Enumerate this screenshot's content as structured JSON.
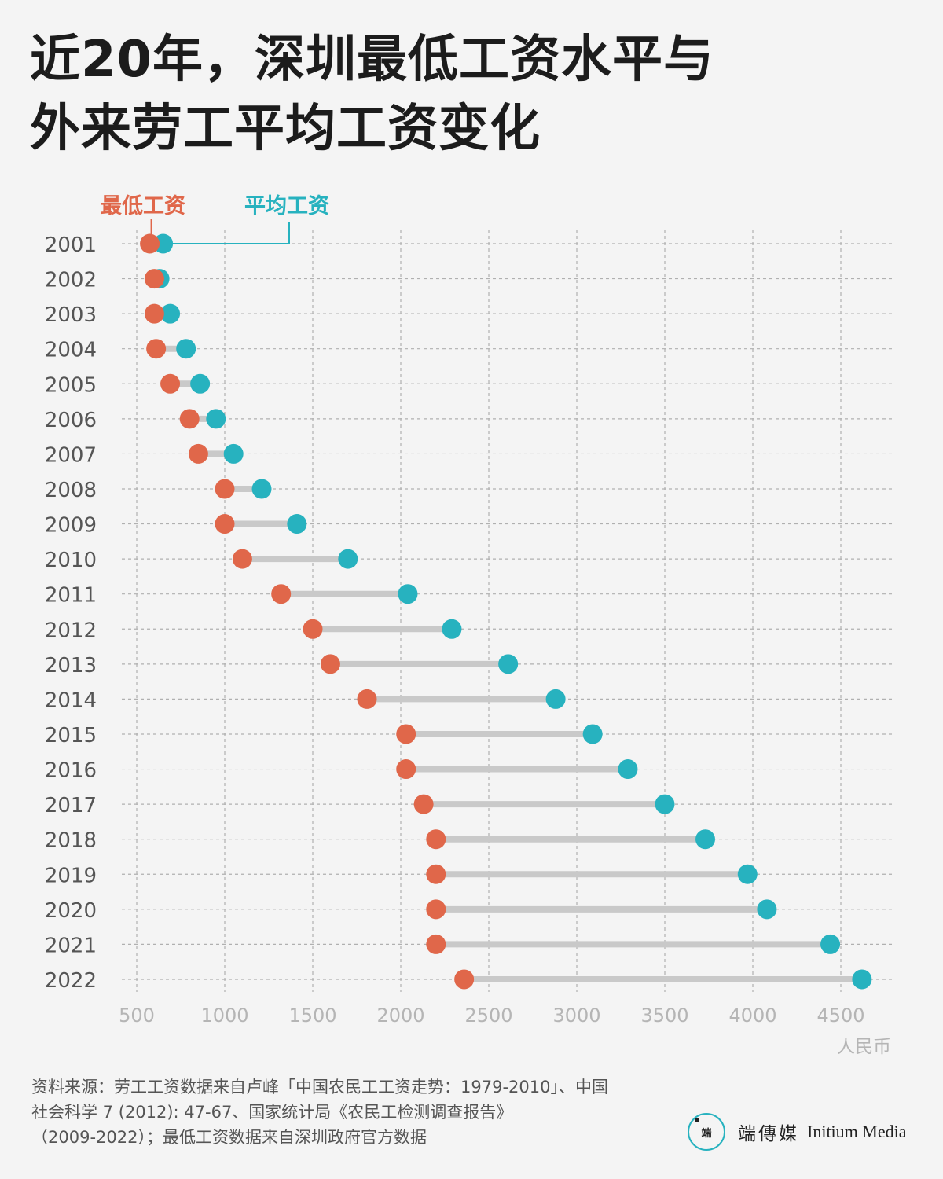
{
  "title": {
    "line1": "近20年，深圳最低工资水平与",
    "line2": "外来劳工平均工资变化"
  },
  "legend": {
    "min_label": "最低工资",
    "avg_label": "平均工资"
  },
  "colors": {
    "min": "#e0674a",
    "avg": "#27b2bf",
    "connector": "#c9c9c9",
    "grid": "#b0b0b0",
    "axis_text": "#b5b5b5",
    "year_text": "#555555"
  },
  "chart_data": {
    "type": "dumbbell",
    "unit_label": "人民币",
    "xlim": [
      430,
      4750
    ],
    "xticks": [
      500,
      1000,
      1500,
      2000,
      2500,
      3000,
      3500,
      4000,
      4500
    ],
    "grid": true,
    "legend_position": "top-left",
    "categories": [
      "2001",
      "2002",
      "2003",
      "2004",
      "2005",
      "2006",
      "2007",
      "2008",
      "2009",
      "2010",
      "2011",
      "2012",
      "2013",
      "2014",
      "2015",
      "2016",
      "2017",
      "2018",
      "2019",
      "2020",
      "2021",
      "2022"
    ],
    "series": [
      {
        "name": "最低工资",
        "values": [
          574,
          600,
          600,
          610,
          690,
          800,
          850,
          1000,
          1000,
          1100,
          1320,
          1500,
          1600,
          1808,
          2030,
          2030,
          2130,
          2200,
          2200,
          2200,
          2200,
          2360
        ]
      },
      {
        "name": "平均工资",
        "values": [
          650,
          630,
          690,
          780,
          860,
          950,
          1050,
          1210,
          1410,
          1700,
          2040,
          2290,
          2610,
          2880,
          3090,
          3290,
          3500,
          3730,
          3970,
          4080,
          4440,
          4620
        ]
      }
    ]
  },
  "source": {
    "line1": "资料来源：劳工工资数据来自卢峰「中国农民工工资走势：1979-2010」、中国",
    "line2": "社会科学 7 (2012): 47-67、国家统计局《农民工检测调查报告》",
    "line3": "（2009-2022）；最低工资数据来自深圳政府官方数据"
  },
  "branding": {
    "logo_mark": "端",
    "name_cn": "端傳媒",
    "name_en": "Initium Media"
  }
}
